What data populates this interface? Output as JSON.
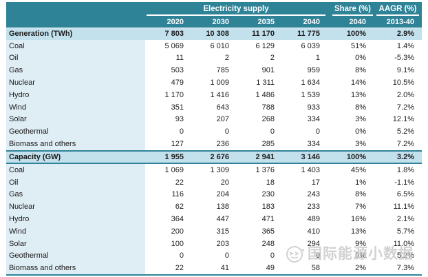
{
  "chart_data": {
    "type": "table",
    "title": "Electricity supply",
    "header": {
      "group_label": "Electricity supply",
      "share_label": "Share (%)",
      "aagr_label": "AAGR (%)",
      "year_columns": [
        "2020",
        "2030",
        "2035",
        "2040"
      ],
      "share_sub": "2040",
      "aagr_sub": "2013-40"
    },
    "columns": [
      "2020",
      "2030",
      "2035",
      "2040",
      "Share (%) 2040",
      "AAGR (%) 2013-40"
    ],
    "sections": [
      {
        "title": "Generation (TWh)",
        "totals": [
          "7 803",
          "10 308",
          "11 170",
          "11 775",
          "100%",
          "2.9%"
        ],
        "rows": [
          {
            "label": "Coal",
            "values": [
              "5 069",
              "6 010",
              "6 129",
              "6 039",
              "51%",
              "1.4%"
            ]
          },
          {
            "label": "Oil",
            "values": [
              "11",
              "2",
              "2",
              "1",
              "0%",
              "-5.3%"
            ]
          },
          {
            "label": "Gas",
            "values": [
              "503",
              "785",
              "901",
              "959",
              "8%",
              "9.1%"
            ]
          },
          {
            "label": "Nuclear",
            "values": [
              "479",
              "1 009",
              "1 311",
              "1 634",
              "14%",
              "10.5%"
            ]
          },
          {
            "label": "Hydro",
            "values": [
              "1 170",
              "1 416",
              "1 486",
              "1 539",
              "13%",
              "2.0%"
            ]
          },
          {
            "label": "Wind",
            "values": [
              "351",
              "643",
              "788",
              "933",
              "8%",
              "7.2%"
            ]
          },
          {
            "label": "Solar",
            "values": [
              "93",
              "207",
              "268",
              "334",
              "3%",
              "12.1%"
            ]
          },
          {
            "label": "Geothermal",
            "values": [
              "0",
              "0",
              "0",
              "0",
              "0%",
              "5.2%"
            ]
          },
          {
            "label": "Biomass and others",
            "values": [
              "127",
              "236",
              "285",
              "334",
              "3%",
              "7.2%"
            ]
          }
        ]
      },
      {
        "title": "Capacity (GW)",
        "totals": [
          "1 955",
          "2 676",
          "2 941",
          "3 146",
          "100%",
          "3.2%"
        ],
        "rows": [
          {
            "label": "Coal",
            "values": [
              "1 069",
              "1 309",
              "1 376",
              "1 403",
              "45%",
              "1.8%"
            ]
          },
          {
            "label": "Oil",
            "values": [
              "22",
              "20",
              "18",
              "17",
              "1%",
              "-1.1%"
            ]
          },
          {
            "label": "Gas",
            "values": [
              "116",
              "204",
              "230",
              "243",
              "8%",
              "6.5%"
            ]
          },
          {
            "label": "Nuclear",
            "values": [
              "62",
              "138",
              "183",
              "233",
              "7%",
              "11.1%"
            ]
          },
          {
            "label": "Hydro",
            "values": [
              "364",
              "447",
              "471",
              "489",
              "16%",
              "2.1%"
            ]
          },
          {
            "label": "Wind",
            "values": [
              "200",
              "315",
              "365",
              "410",
              "13%",
              "5.7%"
            ]
          },
          {
            "label": "Solar",
            "values": [
              "100",
              "203",
              "248",
              "294",
              "9%",
              "11.0%"
            ]
          },
          {
            "label": "Geothermal",
            "values": [
              "0",
              "0",
              "0",
              "0",
              "0%",
              "5.2%"
            ]
          },
          {
            "label": "Biomass and others",
            "values": [
              "22",
              "41",
              "49",
              "58",
              "2%",
              "7.3%"
            ]
          }
        ]
      }
    ]
  },
  "watermark": {
    "text": "国际能源小数据",
    "icon": "smiley-face-icon"
  },
  "colors": {
    "header_teal": "#2F8397",
    "section_row_blue": "#C3E0ED",
    "label_column_blue": "#DFEDF4",
    "watermark_gray": "#C9C9C9"
  }
}
